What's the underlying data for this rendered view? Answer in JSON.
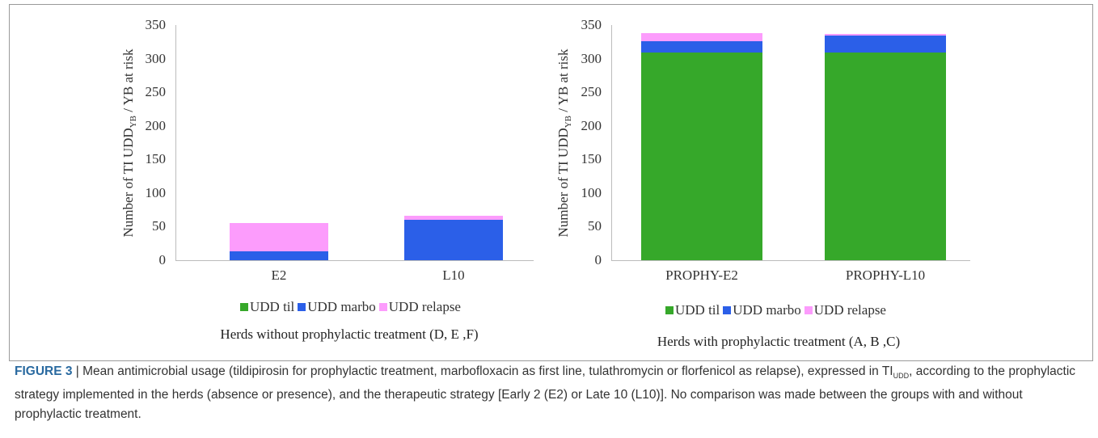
{
  "colors": {
    "til": "#36a82a",
    "marbo": "#2b5fe8",
    "relapse": "#fc9cfc"
  },
  "chart_data": [
    {
      "type": "bar",
      "stacked": true,
      "categories": [
        "E2",
        "L10"
      ],
      "series": [
        {
          "name": "UDD til",
          "values": [
            0,
            0
          ]
        },
        {
          "name": "UDD marbo",
          "values": [
            13,
            60
          ]
        },
        {
          "name": "UDD relapse",
          "values": [
            42,
            6
          ]
        }
      ],
      "ylim": [
        0,
        350
      ],
      "yticks": [
        "0",
        "50",
        "100",
        "150",
        "200",
        "250",
        "300",
        "350"
      ],
      "ylabel_main": "Number of  TI  UDD",
      "ylabel_sub": "YB",
      "ylabel_tail": " / YB at risk",
      "legend": [
        "UDD til",
        "UDD marbo",
        "UDD relapse"
      ],
      "subtitle": "Herds without prophylactic treatment (D, E ,F)"
    },
    {
      "type": "bar",
      "stacked": true,
      "categories": [
        "PROPHY-E2",
        "PROPHY-L10"
      ],
      "series": [
        {
          "name": "UDD til",
          "values": [
            309,
            309
          ]
        },
        {
          "name": "UDD marbo",
          "values": [
            17,
            25
          ]
        },
        {
          "name": "UDD relapse",
          "values": [
            12,
            3
          ]
        }
      ],
      "ylim": [
        0,
        350
      ],
      "yticks": [
        "0",
        "50",
        "100",
        "150",
        "200",
        "250",
        "300",
        "350"
      ],
      "ylabel_main": "Number of  TI  UDD",
      "ylabel_sub": "YB",
      "ylabel_tail": " / YB at risk",
      "legend": [
        "UDD til",
        "UDD marbo",
        "UDD relapse"
      ],
      "subtitle": "Herds with prophylactic treatment (A, B ,C)"
    }
  ],
  "caption": {
    "label": "FIGURE 3",
    "text_1": " | Mean antimicrobial usage (tildipirosin for prophylactic treatment, marbofloxacin as first line, tulathromycin or florfenicol as relapse), expressed in TI",
    "sub": "UDD",
    "text_2": ", according to the prophylactic strategy implemented in the herds (absence or presence), and the therapeutic strategy [Early 2 (E2) or Late 10 (L10)]. No comparison was made between the groups with and without prophylactic treatment."
  }
}
